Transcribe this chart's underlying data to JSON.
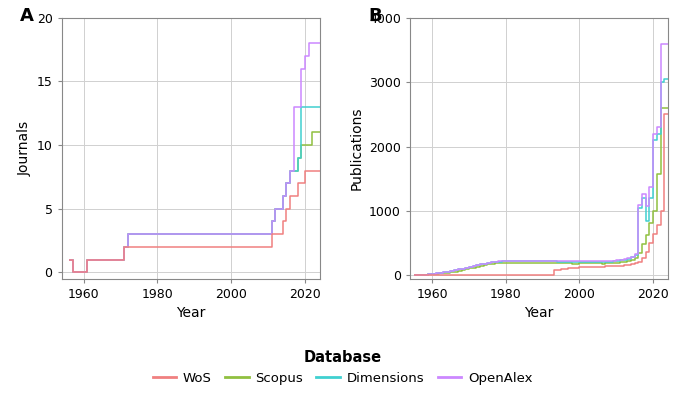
{
  "colors": {
    "WoS": "#F08080",
    "Scopus": "#90C040",
    "Dimensions": "#40D0D0",
    "OpenAlex": "#CC88FF"
  },
  "linewidth": 1.1,
  "journals_WoS": {
    "years": [
      1956,
      1957,
      1960,
      1961,
      1966,
      1970,
      1971,
      1972,
      1975,
      2011,
      2012,
      2013,
      2014,
      2015,
      2016,
      2017,
      2018,
      2019,
      2020,
      2021,
      2022,
      2023,
      2024
    ],
    "values": [
      1,
      0,
      0,
      1,
      1,
      1,
      2,
      2,
      2,
      3,
      3,
      3,
      4,
      5,
      6,
      6,
      7,
      7,
      8,
      8,
      8,
      8,
      8
    ]
  },
  "journals_Scopus": {
    "years": [
      1956,
      1957,
      1960,
      1961,
      1966,
      1970,
      1971,
      1972,
      1975,
      2011,
      2012,
      2013,
      2014,
      2015,
      2016,
      2017,
      2018,
      2019,
      2020,
      2021,
      2022,
      2023,
      2024
    ],
    "values": [
      1,
      0,
      0,
      1,
      1,
      1,
      2,
      3,
      3,
      4,
      5,
      5,
      6,
      7,
      8,
      8,
      9,
      10,
      10,
      10,
      11,
      11,
      11
    ]
  },
  "journals_Dimensions": {
    "years": [
      1956,
      1957,
      1960,
      1961,
      1966,
      1970,
      1971,
      1972,
      1975,
      2011,
      2012,
      2013,
      2014,
      2015,
      2016,
      2017,
      2018,
      2019,
      2020,
      2021,
      2022,
      2023,
      2024
    ],
    "values": [
      1,
      0,
      0,
      1,
      1,
      1,
      2,
      3,
      3,
      4,
      5,
      5,
      6,
      7,
      8,
      8,
      9,
      13,
      13,
      13,
      13,
      13,
      13
    ]
  },
  "journals_OpenAlex": {
    "years": [
      1956,
      1957,
      1960,
      1961,
      1966,
      1970,
      1971,
      1972,
      1975,
      2011,
      2012,
      2013,
      2014,
      2015,
      2016,
      2017,
      2018,
      2019,
      2020,
      2021,
      2022,
      2023,
      2024
    ],
    "values": [
      1,
      0,
      0,
      1,
      1,
      1,
      2,
      3,
      3,
      4,
      5,
      5,
      6,
      7,
      8,
      13,
      13,
      16,
      17,
      18,
      18,
      18,
      18
    ]
  },
  "pubs_WoS": {
    "years": [
      1955,
      1956,
      1957,
      1958,
      1959,
      1960,
      1961,
      1962,
      1963,
      1964,
      1965,
      1966,
      1967,
      1968,
      1969,
      1970,
      1971,
      1972,
      1973,
      1974,
      1975,
      1976,
      1977,
      1978,
      1979,
      1980,
      1981,
      1982,
      1983,
      1984,
      1985,
      1986,
      1987,
      1988,
      1989,
      1990,
      1991,
      1992,
      1993,
      1994,
      1995,
      1996,
      1997,
      1998,
      1999,
      2000,
      2001,
      2002,
      2003,
      2004,
      2005,
      2006,
      2007,
      2008,
      2009,
      2010,
      2011,
      2012,
      2013,
      2014,
      2015,
      2016,
      2017,
      2018,
      2019,
      2020,
      2021,
      2022,
      2023,
      2024
    ],
    "values": [
      0,
      0,
      0,
      0,
      0,
      0,
      0,
      0,
      0,
      0,
      0,
      0,
      0,
      0,
      0,
      0,
      0,
      0,
      0,
      0,
      0,
      0,
      0,
      0,
      0,
      0,
      0,
      0,
      0,
      0,
      0,
      0,
      0,
      0,
      0,
      0,
      0,
      0,
      80,
      90,
      100,
      105,
      110,
      115,
      120,
      125,
      128,
      130,
      132,
      134,
      135,
      136,
      138,
      140,
      143,
      146,
      150,
      155,
      162,
      170,
      185,
      210,
      270,
      370,
      500,
      650,
      780,
      1000,
      2500,
      2500
    ]
  },
  "pubs_Scopus": {
    "years": [
      1955,
      1956,
      1957,
      1958,
      1959,
      1960,
      1961,
      1962,
      1963,
      1964,
      1965,
      1966,
      1967,
      1968,
      1969,
      1970,
      1971,
      1972,
      1973,
      1974,
      1975,
      1976,
      1977,
      1978,
      1979,
      1980,
      1981,
      1982,
      1983,
      1984,
      1985,
      1986,
      1987,
      1988,
      1989,
      1990,
      1991,
      1992,
      1993,
      1994,
      1995,
      1996,
      1997,
      1998,
      1999,
      2000,
      2001,
      2002,
      2003,
      2004,
      2005,
      2006,
      2007,
      2008,
      2009,
      2010,
      2011,
      2012,
      2013,
      2014,
      2015,
      2016,
      2017,
      2018,
      2019,
      2020,
      2021,
      2022,
      2023,
      2024
    ],
    "values": [
      0,
      0,
      5,
      10,
      15,
      20,
      25,
      30,
      35,
      42,
      50,
      60,
      72,
      85,
      95,
      108,
      120,
      135,
      148,
      158,
      170,
      180,
      185,
      190,
      192,
      194,
      195,
      196,
      196,
      196,
      196,
      196,
      196,
      196,
      196,
      196,
      196,
      194,
      192,
      190,
      188,
      186,
      185,
      184,
      184,
      185,
      186,
      186,
      186,
      186,
      185,
      184,
      185,
      187,
      190,
      195,
      202,
      212,
      225,
      242,
      270,
      350,
      480,
      630,
      820,
      1000,
      1580,
      2600,
      2600,
      2600
    ]
  },
  "pubs_Dimensions": {
    "years": [
      1955,
      1956,
      1957,
      1958,
      1959,
      1960,
      1961,
      1962,
      1963,
      1964,
      1965,
      1966,
      1967,
      1968,
      1969,
      1970,
      1971,
      1972,
      1973,
      1974,
      1975,
      1976,
      1977,
      1978,
      1979,
      1980,
      1981,
      1982,
      1983,
      1984,
      1985,
      1986,
      1987,
      1988,
      1989,
      1990,
      1991,
      1992,
      1993,
      1994,
      1995,
      1996,
      1997,
      1998,
      1999,
      2000,
      2001,
      2002,
      2003,
      2004,
      2005,
      2006,
      2007,
      2008,
      2009,
      2010,
      2011,
      2012,
      2013,
      2014,
      2015,
      2016,
      2017,
      2018,
      2019,
      2020,
      2021,
      2022,
      2023,
      2024
    ],
    "values": [
      0,
      0,
      5,
      12,
      18,
      25,
      32,
      38,
      46,
      55,
      65,
      78,
      92,
      105,
      116,
      130,
      145,
      160,
      170,
      180,
      195,
      205,
      210,
      215,
      218,
      220,
      221,
      222,
      222,
      222,
      222,
      222,
      222,
      222,
      222,
      222,
      222,
      220,
      218,
      215,
      212,
      210,
      209,
      208,
      208,
      210,
      211,
      212,
      213,
      213,
      212,
      211,
      212,
      214,
      218,
      224,
      232,
      243,
      258,
      278,
      310,
      1050,
      1200,
      850,
      1200,
      2100,
      2200,
      3000,
      3050,
      3050
    ]
  },
  "pubs_OpenAlex": {
    "years": [
      1955,
      1956,
      1957,
      1958,
      1959,
      1960,
      1961,
      1962,
      1963,
      1964,
      1965,
      1966,
      1967,
      1968,
      1969,
      1970,
      1971,
      1972,
      1973,
      1974,
      1975,
      1976,
      1977,
      1978,
      1979,
      1980,
      1981,
      1982,
      1983,
      1984,
      1985,
      1986,
      1987,
      1988,
      1989,
      1990,
      1991,
      1992,
      1993,
      1994,
      1995,
      1996,
      1997,
      1998,
      1999,
      2000,
      2001,
      2002,
      2003,
      2004,
      2005,
      2006,
      2007,
      2008,
      2009,
      2010,
      2011,
      2012,
      2013,
      2014,
      2015,
      2016,
      2017,
      2018,
      2019,
      2020,
      2021,
      2022,
      2023,
      2024
    ],
    "values": [
      0,
      0,
      5,
      12,
      18,
      25,
      32,
      38,
      46,
      55,
      65,
      78,
      92,
      105,
      116,
      130,
      145,
      160,
      170,
      180,
      195,
      205,
      212,
      218,
      222,
      225,
      227,
      228,
      229,
      229,
      229,
      229,
      230,
      230,
      230,
      230,
      230,
      228,
      226,
      223,
      220,
      218,
      217,
      216,
      217,
      219,
      220,
      221,
      222,
      222,
      221,
      220,
      221,
      223,
      227,
      233,
      242,
      254,
      269,
      290,
      325,
      1100,
      1260,
      1080,
      1380,
      2200,
      2300,
      3600,
      3600,
      3600
    ]
  },
  "panel_A_ylim": [
    -0.5,
    20
  ],
  "panel_A_yticks": [
    0,
    5,
    10,
    15,
    20
  ],
  "panel_B_ylim": [
    -50,
    4000
  ],
  "panel_B_yticks": [
    0,
    1000,
    2000,
    3000,
    4000
  ],
  "xlim": [
    1954,
    2024
  ],
  "xticks": [
    1960,
    1980,
    2000,
    2020
  ],
  "legend_title": "Database",
  "legend_labels": [
    "WoS",
    "Scopus",
    "Dimensions",
    "OpenAlex"
  ],
  "panel_labels": [
    "A",
    "B"
  ],
  "ylabel_A": "Journals",
  "ylabel_B": "Publications",
  "xlabel": "Year",
  "bg_color": "#FFFFFF",
  "grid_color": "#D0D0D0",
  "axis_color": "#888888"
}
